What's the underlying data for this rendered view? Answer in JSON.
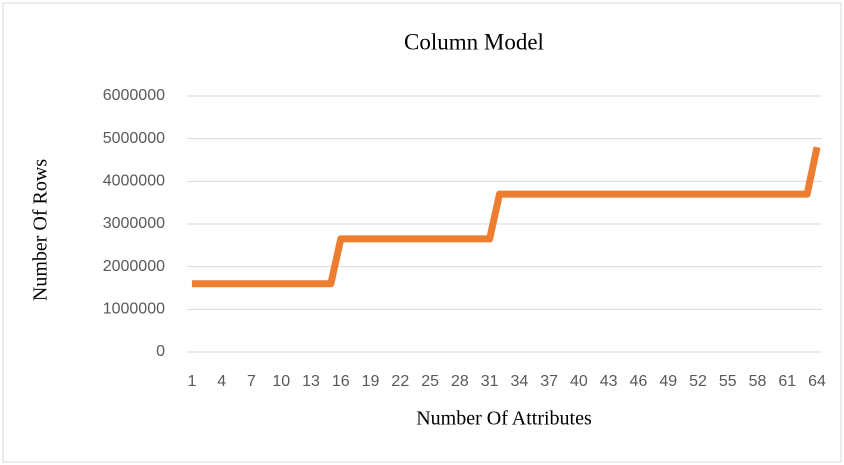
{
  "chart_data": {
    "type": "line",
    "title": "Column Model",
    "x_label": "Number Of Attributes",
    "y_label": "Number Of Rows",
    "categories": [
      1,
      null,
      null,
      4,
      null,
      null,
      7,
      null,
      null,
      10,
      null,
      null,
      13,
      null,
      null,
      16,
      null,
      null,
      19,
      null,
      null,
      22,
      null,
      null,
      25,
      null,
      null,
      28,
      null,
      null,
      31,
      null,
      null,
      34,
      null,
      null,
      37,
      null,
      null,
      40,
      null,
      null,
      43,
      null,
      null,
      46,
      null,
      null,
      49,
      null,
      null,
      52,
      null,
      null,
      55,
      null,
      null,
      58,
      null,
      null,
      61,
      null,
      null,
      64
    ],
    "values": [
      1600000,
      1600000,
      1600000,
      1600000,
      1600000,
      1600000,
      1600000,
      1600000,
      1600000,
      1600000,
      1600000,
      1600000,
      1600000,
      1600000,
      1600000,
      2650000,
      2650000,
      2650000,
      2650000,
      2650000,
      2650000,
      2650000,
      2650000,
      2650000,
      2650000,
      2650000,
      2650000,
      2650000,
      2650000,
      2650000,
      2650000,
      3700000,
      3700000,
      3700000,
      3700000,
      3700000,
      3700000,
      3700000,
      3700000,
      3700000,
      3700000,
      3700000,
      3700000,
      3700000,
      3700000,
      3700000,
      3700000,
      3700000,
      3700000,
      3700000,
      3700000,
      3700000,
      3700000,
      3700000,
      3700000,
      3700000,
      3700000,
      3700000,
      3700000,
      3700000,
      3700000,
      3700000,
      3700000,
      4800000
    ],
    "color": "#ed7d31",
    "ylim": [
      0,
      6000000
    ],
    "yticks": [
      0,
      1000000,
      2000000,
      3000000,
      4000000,
      5000000,
      6000000
    ],
    "grid": true
  }
}
